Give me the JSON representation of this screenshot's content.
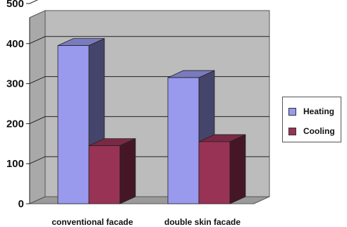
{
  "chart_data": {
    "type": "bar",
    "categories": [
      "conventional facade",
      "double skin facade"
    ],
    "series": [
      {
        "name": "Heating",
        "values": [
          395,
          315
        ],
        "color": "#9999ee"
      },
      {
        "name": "Cooling",
        "values": [
          145,
          155
        ],
        "color": "#993355"
      }
    ],
    "ylim": [
      0,
      500
    ],
    "yticks": [
      "0",
      "100",
      "200",
      "300",
      "400",
      "500"
    ],
    "grid": true,
    "legend": "right",
    "style": "3d"
  },
  "legend": {
    "items": [
      {
        "label": "Heating",
        "color": "#9999ee"
      },
      {
        "label": "Cooling",
        "color": "#993355"
      }
    ]
  }
}
